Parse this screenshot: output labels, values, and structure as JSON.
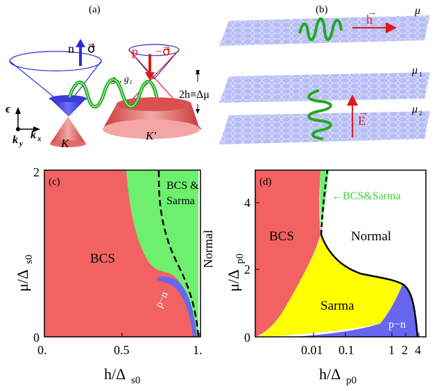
{
  "panels": {
    "a": {
      "label": "(a)",
      "n_text": "n",
      "p_text": "p",
      "sigma_up": "σ⃗",
      "sigma_down": "−σ⃗",
      "couplings": "g₀, g₁",
      "splitting": "2h≡Δμ",
      "valley_K": "K",
      "valley_Kp": "K′",
      "axis_eps": "ϵ",
      "axis_ky": "k",
      "axis_ky_sub": "y",
      "axis_kx": "k",
      "axis_kx_sub": "x"
    },
    "b": {
      "label": "(b)",
      "h_text": "h",
      "E_text": "E",
      "mu_top": "μ",
      "mu1": "μ",
      "mu1_sub": "1",
      "mu2": "μ",
      "mu2_sub": "2"
    },
    "c": {
      "label": "(c)",
      "xlabel": "h/Δ",
      "xlabel_sub": "s0",
      "ylabel": "μ/Δ",
      "ylabel_sub": "s0",
      "x_ticks": [
        "0.",
        "0.5",
        "1."
      ],
      "y_ticks": [
        "0",
        "2"
      ],
      "regions": {
        "bcs": "BCS",
        "bcs_sarma_1": "BCS &",
        "bcs_sarma_2": "Sarma",
        "normal": "Normal",
        "pn": "p−n"
      }
    },
    "d": {
      "label": "(d)",
      "xlabel": "h/Δ",
      "xlabel_sub": "p0",
      "ylabel": "μ/Δ",
      "ylabel_sub": "p0",
      "x_ticks": [
        "0.01",
        "0.1",
        "1",
        "2",
        "4"
      ],
      "y_ticks": [
        "0",
        "2",
        "4"
      ],
      "regions": {
        "bcs": "BCS",
        "sarma": "Sarma",
        "normal": "Normal",
        "pn": "p−n",
        "bcs_sarma_arrow": "←BCS&Sarma"
      }
    }
  },
  "colors": {
    "bcs": "#f26262",
    "sarma_mix": "#6ef06e",
    "sarma": "#ffff00",
    "pn": "#6666ee",
    "normal": "#ffffff",
    "graphene": "#b8bef5",
    "arrow_red": "#e01818",
    "wave_green": "#1faa1f"
  }
}
